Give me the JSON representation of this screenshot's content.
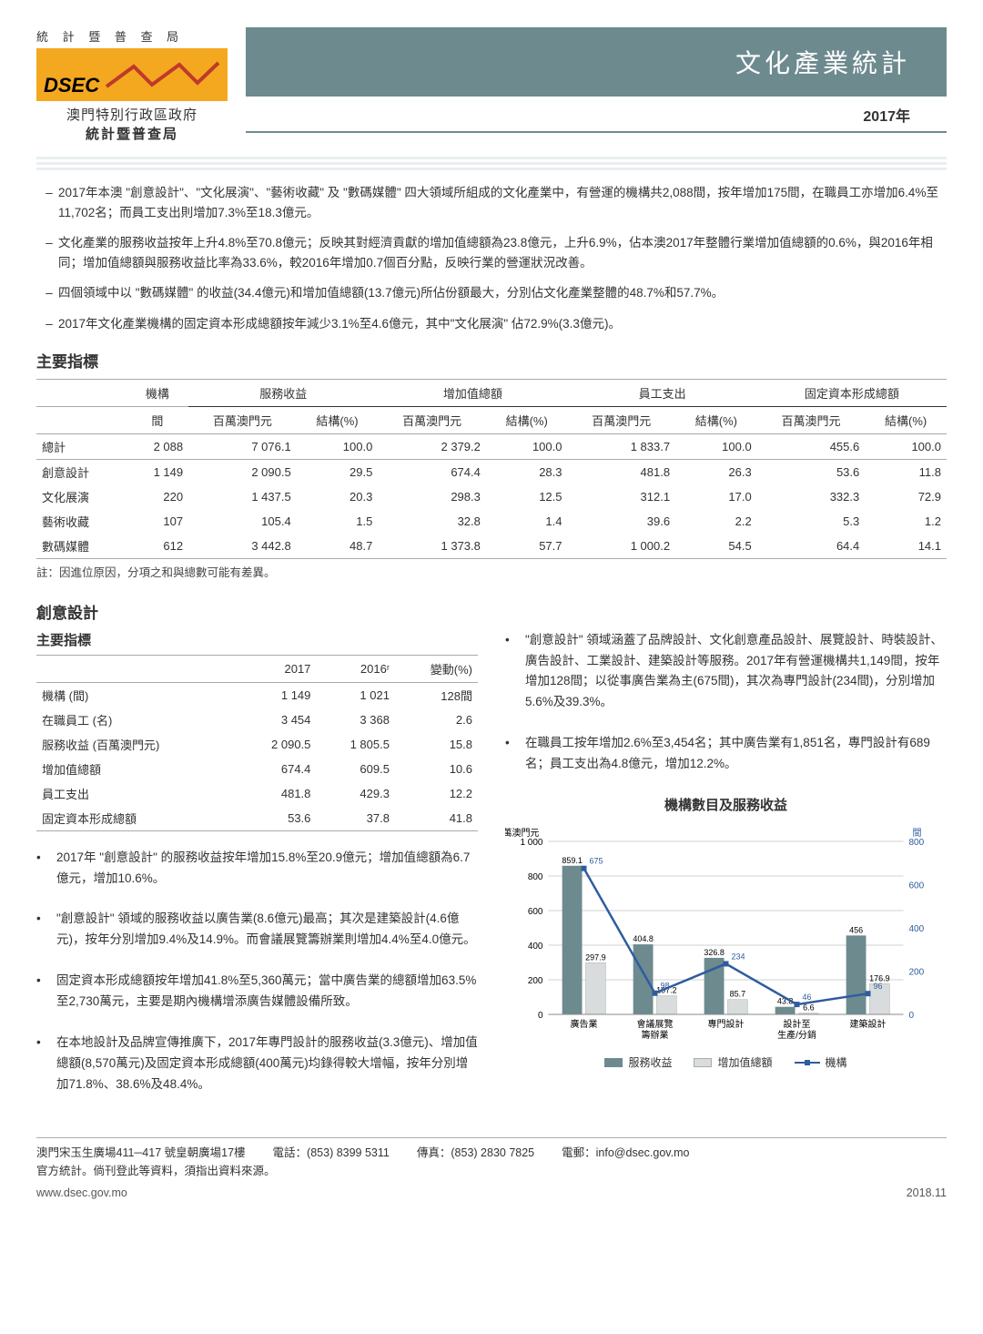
{
  "logo": {
    "top_spaced": "統 計 暨 普 查 局",
    "dsec": "DSEC",
    "line1": "澳門特別行政區政府",
    "line2": "統計暨普查局",
    "zigzag_color": "#c0392b",
    "box_color": "#f4a820"
  },
  "header": {
    "title": "文化產業統計",
    "year": "2017年",
    "title_bg": "#6d8a8f"
  },
  "intro": [
    "2017年本澳 \"創意設計\"、\"文化展演\"、\"藝術收藏\" 及 \"數碼媒體\" 四大領域所組成的文化產業中，有營運的機構共2,088間，按年增加175間，在職員工亦增加6.4%至11,702名；而員工支出則增加7.3%至18.3億元。",
    "文化產業的服務收益按年上升4.8%至70.8億元；反映其對經濟貢獻的增加值總額為23.8億元，上升6.9%，佔本澳2017年整體行業增加值總額的0.6%，與2016年相同；增加值總額與服務收益比率為33.6%，較2016年增加0.7個百分點，反映行業的營運狀況改善。",
    "四個領域中以 \"數碼媒體\" 的收益(34.4億元)和增加值總額(13.7億元)所佔份額最大，分別佔文化產業整體的48.7%和57.7%。",
    "2017年文化產業機構的固定資本形成總額按年減少3.1%至4.6億元，其中\"文化展演\" 佔72.9%(3.3億元)。"
  ],
  "main_table": {
    "title": "主要指標",
    "group_headers": [
      "機構",
      "服務收益",
      "增加值總額",
      "員工支出",
      "固定資本形成總額"
    ],
    "sub_headers": [
      "間",
      "百萬澳門元",
      "結構(%)",
      "百萬澳門元",
      "結構(%)",
      "百萬澳門元",
      "結構(%)",
      "百萬澳門元",
      "結構(%)"
    ],
    "rows": [
      {
        "label": "總計",
        "cells": [
          "2 088",
          "7 076.1",
          "100.0",
          "2 379.2",
          "100.0",
          "1 833.7",
          "100.0",
          "455.6",
          "100.0"
        ],
        "total": true
      },
      {
        "label": "創意設計",
        "cells": [
          "1 149",
          "2 090.5",
          "29.5",
          "674.4",
          "28.3",
          "481.8",
          "26.3",
          "53.6",
          "11.8"
        ]
      },
      {
        "label": "文化展演",
        "cells": [
          "220",
          "1 437.5",
          "20.3",
          "298.3",
          "12.5",
          "312.1",
          "17.0",
          "332.3",
          "72.9"
        ]
      },
      {
        "label": "藝術收藏",
        "cells": [
          "107",
          "105.4",
          "1.5",
          "32.8",
          "1.4",
          "39.6",
          "2.2",
          "5.3",
          "1.2"
        ]
      },
      {
        "label": "數碼媒體",
        "cells": [
          "612",
          "3 442.8",
          "48.7",
          "1 373.8",
          "57.7",
          "1 000.2",
          "54.5",
          "64.4",
          "14.1"
        ],
        "last": true
      }
    ],
    "note": "註：因進位原因，分項之和與總數可能有差異。"
  },
  "section2": {
    "title": "創意設計",
    "small_table": {
      "title": "主要指標",
      "headers": [
        "",
        "2017",
        "2016ʳ",
        "變動(%)"
      ],
      "rows": [
        {
          "label": "機構 (間)",
          "cells": [
            "1 149",
            "1 021",
            "128間"
          ],
          "div": true
        },
        {
          "label": "在職員工 (名)",
          "cells": [
            "3 454",
            "3 368",
            "2.6"
          ]
        },
        {
          "label": "服務收益 (百萬澳門元)",
          "cells": [
            "2 090.5",
            "1 805.5",
            "15.8"
          ]
        },
        {
          "label": "增加值總額",
          "cells": [
            "674.4",
            "609.5",
            "10.6"
          ]
        },
        {
          "label": "員工支出",
          "cells": [
            "481.8",
            "429.3",
            "12.2"
          ]
        },
        {
          "label": "固定資本形成總額",
          "cells": [
            "53.6",
            "37.8",
            "41.8"
          ],
          "last": true
        }
      ]
    },
    "left_bullets": [
      "2017年 \"創意設計\" 的服務收益按年增加15.8%至20.9億元；增加值總額為6.7億元，增加10.6%。",
      "\"創意設計\" 領域的服務收益以廣告業(8.6億元)最高；其次是建築設計(4.6億元)，按年分別增加9.4%及14.9%。而會議展覽籌辦業則增加4.4%至4.0億元。",
      "固定資本形成總額按年增加41.8%至5,360萬元；當中廣告業的總額增加63.5%至2,730萬元，主要是期內機構增添廣告媒體設備所致。",
      "在本地設計及品牌宣傳推廣下，2017年專門設計的服務收益(3.3億元)、增加值總額(8,570萬元)及固定資本形成總額(400萬元)均錄得較大增幅，按年分別增加71.8%、38.6%及48.4%。"
    ],
    "right_bullets": [
      "\"創意設計\" 領域涵蓋了品牌設計、文化創意產品設計、展覽設計、時裝設計、廣告設計、工業設計、建築設計等服務。2017年有營運機構共1,149間，按年增加128間；以從事廣告業為主(675間)，其次為專門設計(234間)，分別增加5.6%及39.3%。",
      "在職員工按年增加2.6%至3,454名；其中廣告業有1,851名，專門設計有689名；員工支出為4.8億元，增加12.2%。"
    ]
  },
  "chart": {
    "title": "機構數目及服務收益",
    "left_axis_label": "百萬澳門元",
    "right_axis_label": "間",
    "categories": [
      "廣告業",
      "會議展覽\n籌辦業",
      "專門設計",
      "設計至\n生產/分銷",
      "建築設計"
    ],
    "series1": {
      "name": "服務收益",
      "values": [
        859.1,
        404.8,
        326.8,
        43.8,
        456.0
      ],
      "color": "#6d8a8f"
    },
    "series2": {
      "name": "增加值總額",
      "values": [
        297.9,
        107.2,
        85.7,
        6.6,
        176.9
      ],
      "color": "#d8dcdc"
    },
    "series3": {
      "name": "機構",
      "values": [
        675,
        98,
        234,
        46,
        96
      ],
      "color": "#2e5c9e"
    },
    "left_ylim": [
      0,
      1000
    ],
    "left_ticks": [
      0,
      200,
      400,
      600,
      800,
      1000
    ],
    "right_ylim": [
      0,
      800
    ],
    "right_ticks": [
      0,
      200,
      400,
      600,
      800
    ],
    "grid_color": "#d0d0d0",
    "font_size": 10
  },
  "footer": {
    "addr": "澳門宋玉生廣場411─417 號皇朝廣場17樓",
    "tel_label": "電話：",
    "tel": "(853) 8399 5311",
    "fax_label": "傳真：",
    "fax": "(853) 2830 7825",
    "email_label": "電郵：",
    "email": "info@dsec.gov.mo",
    "line2": "官方統計。倘刊登此等資料，須指出資料來源。",
    "url": "www.dsec.gov.mo",
    "date": "2018.11"
  }
}
